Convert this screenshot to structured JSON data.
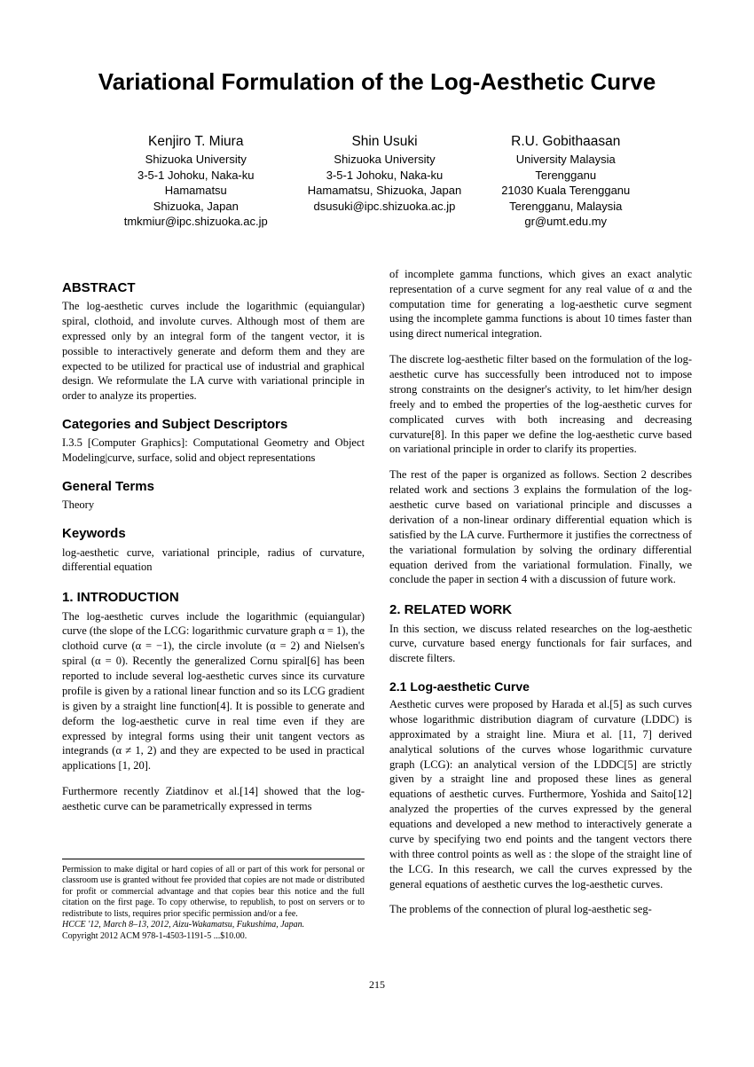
{
  "title": "Variational Formulation of the Log-Aesthetic Curve",
  "authors": [
    {
      "name": "Kenjiro T. Miura",
      "affil1": "Shizuoka University",
      "affil2": "3-5-1 Johoku, Naka-ku",
      "affil3": "Hamamatsu",
      "affil4": "Shizuoka, Japan",
      "email": "tmkmiur@ipc.shizuoka.ac.jp"
    },
    {
      "name": "Shin Usuki",
      "affil1": "Shizuoka University",
      "affil2": "3-5-1 Johoku, Naka-ku",
      "affil3": "Hamamatsu, Shizuoka, Japan",
      "affil4": "",
      "email": "dsusuki@ipc.shizuoka.ac.jp"
    },
    {
      "name": "R.U. Gobithaasan",
      "affil1": "University Malaysia",
      "affil2": "Terengganu",
      "affil3": "21030 Kuala Terengganu",
      "affil4": "Terengganu, Malaysia",
      "email": "gr@umt.edu.my"
    }
  ],
  "sections": {
    "abstract_h": "ABSTRACT",
    "abstract": "The log-aesthetic curves include the logarithmic (equiangular) spiral, clothoid, and involute curves. Although most of them are expressed only by an integral form of the tangent vector, it is possible to interactively generate and deform them and they are expected to be utilized for practical use of industrial and graphical design. We reformulate the LA curve with variational principle in order to analyze its properties.",
    "categories_h": "Categories and Subject Descriptors",
    "categories": "I.3.5 [Computer Graphics]: Computational Geometry and Object Modeling|curve, surface, solid and object representations",
    "terms_h": "General Terms",
    "terms": "Theory",
    "keywords_h": "Keywords",
    "keywords": "log-aesthetic curve, variational principle, radius of curvature, differential equation",
    "intro_h": "1.   INTRODUCTION",
    "intro_p1": "The log-aesthetic curves include the logarithmic (equiangular) curve (the slope of the LCG: logarithmic curvature graph α = 1), the clothoid curve (α = −1), the circle involute (α = 2) and Nielsen's spiral (α = 0). Recently the generalized Cornu spiral[6] has been reported to include several log-aesthetic curves since its curvature profile is given by a rational linear function and so its LCG gradient is given by a straight line function[4]. It is possible to generate and deform the log-aesthetic curve in real time even if they are expressed by integral forms using their unit tangent vectors as integrands (α ≠ 1, 2) and they are expected to be used in practical applications [1, 20].",
    "intro_p2": "Furthermore recently Ziatdinov et al.[14] showed that the log-aesthetic curve can be parametrically expressed in terms",
    "col2_p1": "of incomplete gamma functions, which gives an exact analytic representation of a curve segment for any real value of α and the computation time for generating a log-aesthetic curve segment using the incomplete gamma functions is about 10 times faster than using direct numerical integration.",
    "col2_p2": "The discrete log-aesthetic filter based on the formulation of the log-aesthetic curve has successfully been introduced not to impose strong constraints on the designer's activity, to let him/her design freely and to embed the properties of the log-aesthetic curves for complicated curves with both increasing and decreasing curvature[8]. In this paper we define the log-aesthetic curve based on variational principle in order to clarify its properties.",
    "col2_p3": "The rest of the paper is organized as follows. Section 2 describes related work and sections 3 explains the formulation of the log-aesthetic curve based on variational principle and discusses a derivation of a non-linear ordinary differential equation which is satisfied by the LA curve. Furthermore it justifies the correctness of the variational formulation by solving the ordinary differential equation derived from the variational formulation. Finally, we conclude the paper in section 4 with a discussion of future work.",
    "related_h": "2.   RELATED WORK",
    "related_p1": "In this section, we discuss related researches on the log-aesthetic curve, curvature based energy functionals for fair surfaces, and discrete filters.",
    "lac_h": "2.1   Log-aesthetic Curve",
    "lac_p1": "Aesthetic curves were proposed by Harada et al.[5] as such curves whose logarithmic distribution diagram of curvature (LDDC) is approximated by a straight line. Miura et al. [11, 7] derived analytical solutions of the curves whose logarithmic curvature graph (LCG): an analytical version of the LDDC[5] are strictly given by a straight line and proposed these lines as general equations of aesthetic curves. Furthermore, Yoshida and Saito[12] analyzed the properties of the curves expressed by the general equations and developed a new method to interactively generate a curve by specifying two end points and the tangent vectors there with three control points as well as : the slope of the straight line of the LCG. In this research, we call the curves expressed by the general equations of aesthetic curves the log-aesthetic curves.",
    "lac_p2": "The problems of the connection of plural log-aesthetic seg-"
  },
  "permission": {
    "text": "Permission to make digital or hard copies of all or part of this work for personal or classroom use is granted without fee provided that copies are not made or distributed for profit or commercial advantage and that copies bear this notice and the full citation on the first page. To copy otherwise, to republish, to post on servers or to redistribute to lists, requires prior specific permission and/or a fee.",
    "venue": "HCCE '12, March 8–13, 2012, Aizu-Wakamatsu, Fukushima, Japan.",
    "copyright": "Copyright 2012 ACM 978-1-4503-1191-5 ...$10.00."
  },
  "page_number": "215"
}
